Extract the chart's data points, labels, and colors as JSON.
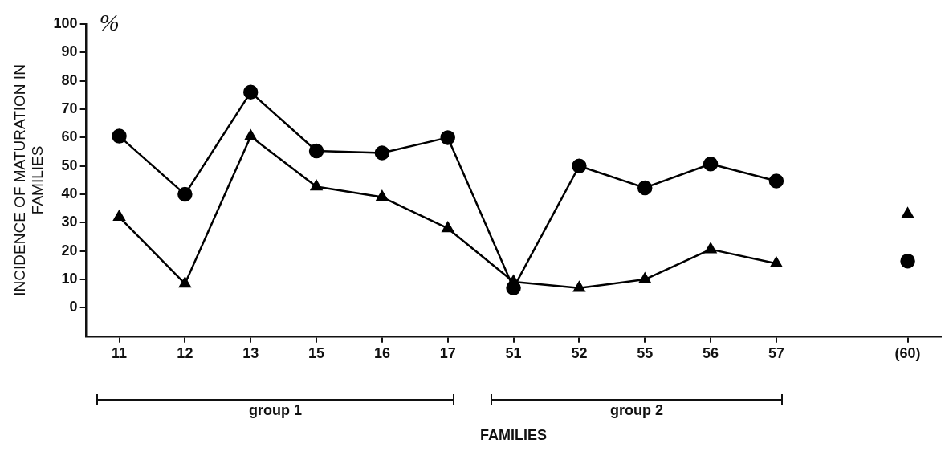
{
  "chart_data": {
    "type": "line",
    "categories": [
      "11",
      "12",
      "13",
      "15",
      "16",
      "17",
      "51",
      "52",
      "55",
      "56",
      "57",
      null,
      "(60)"
    ],
    "series": [
      {
        "color": "#000000",
        "marker": "circle",
        "values": [
          60.5,
          40,
          76,
          55.3,
          54.6,
          60,
          7,
          50,
          42.3,
          50.7,
          44.7,
          null,
          16.5
        ]
      },
      {
        "color": "#000000",
        "marker": "triangle",
        "values": [
          32,
          8.5,
          60.4,
          42.7,
          39,
          28,
          9.2,
          7,
          10,
          20.6,
          15.6,
          null,
          33
        ]
      }
    ],
    "ylabel": "INCIDENCE OF MATURATION IN FAMILIES",
    "xlabel": "FAMILIES",
    "ylim": [
      -10,
      100
    ],
    "yticks": [
      0,
      10,
      20,
      30,
      40,
      50,
      60,
      70,
      80,
      90,
      100
    ],
    "grid": false,
    "legend": false,
    "line_style": "solid",
    "annotations": [
      "%",
      "group 1",
      "group 2"
    ]
  }
}
